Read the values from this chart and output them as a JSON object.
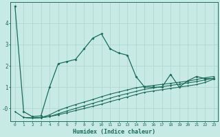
{
  "xlabel": "Humidex (Indice chaleur)",
  "ylabel": "",
  "bg_color": "#c8eae4",
  "grid_color": "#b0d8d0",
  "line_color": "#1a6b5a",
  "xlim": [
    -0.5,
    23.5
  ],
  "ylim": [
    -0.6,
    5.0
  ],
  "yticks": [
    0,
    1,
    2,
    3,
    4
  ],
  "ytick_labels": [
    "-0",
    "1",
    "2",
    "3",
    "4"
  ],
  "xticks": [
    0,
    1,
    2,
    3,
    4,
    5,
    6,
    7,
    8,
    9,
    10,
    11,
    12,
    13,
    14,
    15,
    16,
    17,
    18,
    19,
    20,
    21,
    22,
    23
  ],
  "series1_x": [
    0,
    1,
    2,
    3,
    4,
    5,
    6,
    7,
    8,
    9,
    10,
    11,
    12,
    13,
    14,
    15,
    16,
    17,
    18,
    19,
    20,
    21,
    22,
    23
  ],
  "series1_y": [
    4.8,
    -0.15,
    -0.38,
    -0.35,
    1.0,
    2.1,
    2.2,
    2.3,
    2.8,
    3.3,
    3.5,
    2.8,
    2.6,
    2.5,
    1.5,
    1.0,
    1.0,
    1.0,
    1.6,
    1.0,
    1.3,
    1.5,
    1.4,
    1.4
  ],
  "series2_x": [
    1,
    2,
    3,
    4,
    5,
    6,
    7,
    8,
    9,
    10,
    11,
    12,
    13,
    14,
    15,
    16,
    17,
    18,
    19,
    20,
    21,
    22,
    23
  ],
  "series2_y": [
    -0.42,
    -0.45,
    -0.43,
    -0.38,
    -0.3,
    -0.2,
    -0.1,
    0.0,
    0.1,
    0.2,
    0.32,
    0.43,
    0.54,
    0.65,
    0.76,
    0.82,
    0.88,
    0.94,
    1.0,
    1.06,
    1.12,
    1.22,
    1.38
  ],
  "series3_x": [
    1,
    2,
    3,
    4,
    5,
    6,
    7,
    8,
    9,
    10,
    11,
    12,
    13,
    14,
    15,
    16,
    17,
    18,
    19,
    20,
    21,
    22,
    23
  ],
  "series3_y": [
    -0.42,
    -0.45,
    -0.43,
    -0.38,
    -0.25,
    -0.12,
    0.0,
    0.12,
    0.24,
    0.36,
    0.48,
    0.6,
    0.7,
    0.8,
    0.9,
    0.96,
    1.02,
    1.08,
    1.14,
    1.2,
    1.26,
    1.34,
    1.42
  ],
  "series4_x": [
    0,
    1,
    2,
    3,
    4,
    5,
    6,
    7,
    8,
    9,
    10,
    11,
    12,
    13,
    14,
    15,
    16,
    17,
    18,
    19,
    20,
    21,
    22,
    23
  ],
  "series4_y": [
    -0.15,
    -0.42,
    -0.45,
    -0.43,
    -0.3,
    -0.1,
    0.05,
    0.18,
    0.3,
    0.42,
    0.55,
    0.67,
    0.77,
    0.87,
    0.97,
    1.03,
    1.08,
    1.13,
    1.18,
    1.23,
    1.28,
    1.36,
    1.44,
    1.5
  ]
}
